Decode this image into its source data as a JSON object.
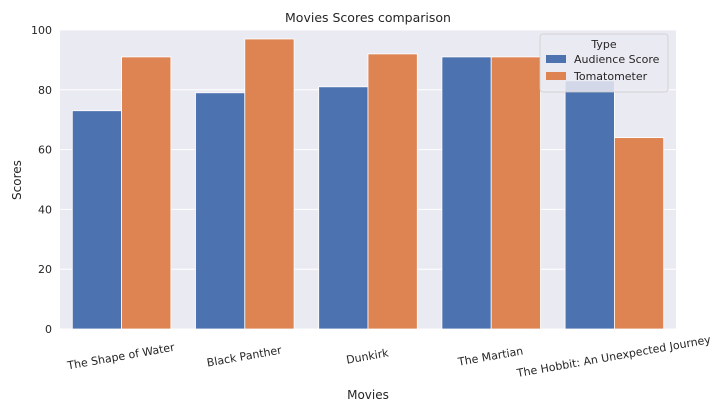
{
  "chart_data": {
    "type": "bar",
    "title": "Movies Scores comparison",
    "xlabel": "Movies",
    "ylabel": "Scores",
    "ylim": [
      0,
      100
    ],
    "yticks": [
      0,
      20,
      40,
      60,
      80,
      100
    ],
    "grid": true,
    "categories": [
      "The Shape of Water",
      "Black Panther",
      "Dunkirk",
      "The Martian",
      "The Hobbit: An Unexpected Journey"
    ],
    "legend": {
      "title": "Type",
      "position": "top-right"
    },
    "series": [
      {
        "name": "Audience Score",
        "color": "#4c72b0",
        "values": [
          73,
          79,
          81,
          91,
          83
        ]
      },
      {
        "name": "Tomatometer",
        "color": "#dd8452",
        "values": [
          91,
          97,
          92,
          91,
          64
        ]
      }
    ]
  },
  "colors": {
    "plot_background": "#eaeaf2",
    "grid": "#ffffff"
  }
}
